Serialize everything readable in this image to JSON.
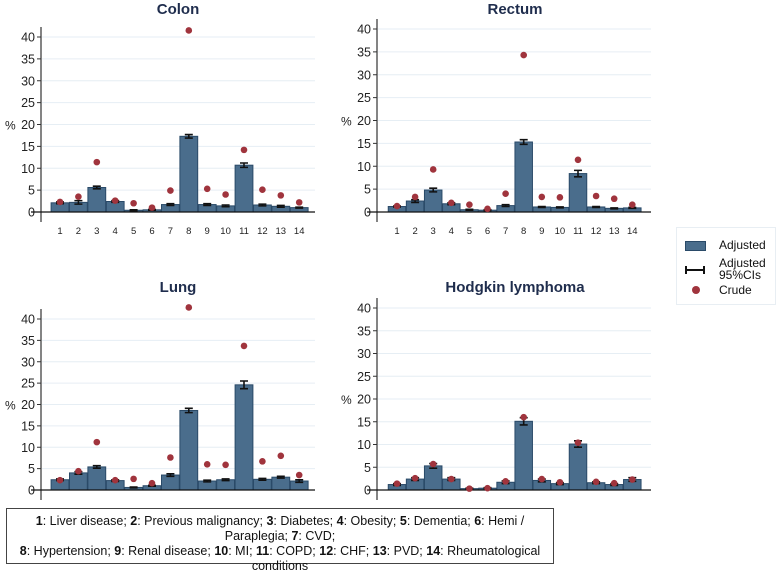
{
  "chart_data": {
    "type": "bar",
    "ylabel": "%",
    "ylim": [
      0,
      40
    ],
    "yticks": [
      0,
      5,
      10,
      15,
      20,
      25,
      30,
      35,
      40
    ],
    "grid": true,
    "categories": [
      "1",
      "2",
      "3",
      "4",
      "5",
      "6",
      "7",
      "8",
      "9",
      "10",
      "11",
      "12",
      "13",
      "14"
    ],
    "panels": [
      {
        "title": "Colon",
        "adjusted": [
          2.1,
          2.2,
          5.6,
          2.4,
          0.4,
          0.5,
          1.7,
          17.3,
          1.7,
          1.4,
          10.7,
          1.6,
          1.3,
          1.0
        ],
        "ci_halfwidth": [
          0.2,
          0.4,
          0.3,
          0.2,
          0.1,
          0.1,
          0.2,
          0.4,
          0.2,
          0.2,
          0.5,
          0.2,
          0.2,
          0.1
        ],
        "crude": [
          2.3,
          3.5,
          11.4,
          2.6,
          2.0,
          1.0,
          4.9,
          41.5,
          5.3,
          4.0,
          14.2,
          5.1,
          3.8,
          2.2
        ]
      },
      {
        "title": "Rectum",
        "adjusted": [
          1.2,
          2.4,
          4.8,
          1.8,
          0.5,
          0.4,
          1.4,
          15.3,
          1.1,
          1.0,
          8.4,
          1.1,
          0.8,
          0.9
        ],
        "ci_halfwidth": [
          0.1,
          0.3,
          0.4,
          0.2,
          0.1,
          0.1,
          0.2,
          0.5,
          0.1,
          0.1,
          0.7,
          0.1,
          0.1,
          0.1
        ],
        "crude": [
          1.3,
          3.3,
          9.3,
          2.0,
          1.6,
          0.7,
          4.0,
          34.3,
          3.3,
          3.2,
          11.4,
          3.5,
          2.9,
          1.6
        ]
      },
      {
        "title": "Lung",
        "adjusted": [
          2.4,
          4.0,
          5.4,
          2.2,
          0.6,
          1.0,
          3.5,
          18.6,
          2.1,
          2.4,
          24.6,
          2.5,
          3.0,
          2.1
        ],
        "ci_halfwidth": [
          0.2,
          0.3,
          0.3,
          0.2,
          0.1,
          0.1,
          0.3,
          0.5,
          0.2,
          0.2,
          0.9,
          0.2,
          0.2,
          0.3
        ],
        "crude": [
          2.3,
          4.4,
          11.2,
          2.3,
          2.6,
          1.6,
          7.6,
          42.7,
          6.0,
          5.9,
          33.7,
          6.7,
          8.0,
          3.5
        ]
      },
      {
        "title": "Hodgkin lymphoma",
        "adjusted": [
          1.2,
          2.4,
          5.3,
          2.4,
          0.3,
          0.4,
          1.7,
          15.1,
          2.1,
          1.4,
          10.1,
          1.6,
          1.2,
          2.3
        ],
        "ci_halfwidth": [
          0.2,
          0.3,
          0.5,
          0.3,
          0.1,
          0.1,
          0.3,
          0.8,
          0.3,
          0.2,
          0.7,
          0.2,
          0.2,
          0.4
        ],
        "crude": [
          1.4,
          2.6,
          5.7,
          2.4,
          0.3,
          0.4,
          1.9,
          16.0,
          2.4,
          1.7,
          10.4,
          1.8,
          1.5,
          2.3
        ]
      }
    ],
    "legend": {
      "placement": "right",
      "entries": [
        "Adjusted",
        "Adjusted 95%CIs",
        "Crude"
      ],
      "adjusted_label": "Adjusted",
      "ci_label_line1": "Adjusted",
      "ci_label_line2": "95%CIs",
      "crude_label": "Crude"
    },
    "footnote": [
      {
        "num": "1",
        "label": ": Liver disease; "
      },
      {
        "num": "2",
        "label": ": Previous malignancy; "
      },
      {
        "num": "3",
        "label": ": Diabetes; "
      },
      {
        "num": "4",
        "label": ": Obesity; "
      },
      {
        "num": "5",
        "label": ": Dementia; "
      },
      {
        "num": "6",
        "label": ": Hemi / Paraplegia; "
      },
      {
        "num": "7",
        "label": ": CVD;"
      },
      {
        "num": "8",
        "label": ": Hypertension; "
      },
      {
        "num": "9",
        "label": ": Renal disease; "
      },
      {
        "num": "10",
        "label": ": MI; "
      },
      {
        "num": "11",
        "label": ": COPD; "
      },
      {
        "num": "12",
        "label": ": CHF; "
      },
      {
        "num": "13",
        "label": ": PVD; "
      },
      {
        "num": "14",
        "label": ": Rheumatological conditions"
      }
    ],
    "colors": {
      "bar": "#4a6d8c",
      "bar_edge": "#2a4a68",
      "crude": "#a0343d",
      "title": "#1f2d4d",
      "grid": "#e6eef4"
    }
  }
}
